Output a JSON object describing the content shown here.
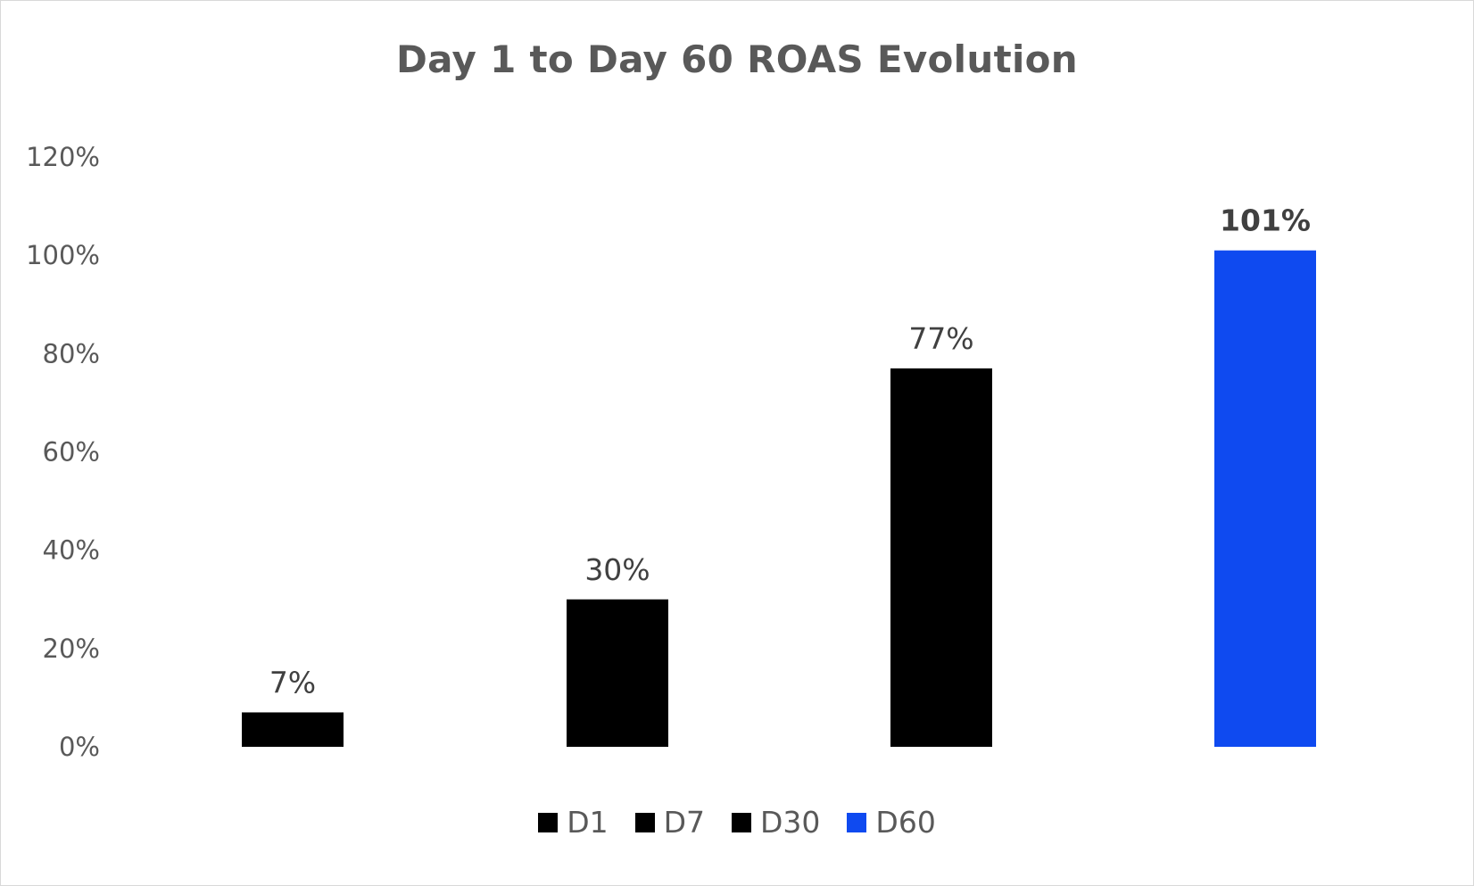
{
  "chart_data": {
    "type": "bar",
    "title": "Day 1 to Day 60 ROAS Evolution",
    "categories": [
      "D1",
      "D7",
      "D30",
      "D60"
    ],
    "values": [
      7,
      30,
      77,
      101
    ],
    "data_labels": [
      "7%",
      "30%",
      "77%",
      "101%"
    ],
    "colors": [
      "#000000",
      "#000000",
      "#000000",
      "#0f4af0"
    ],
    "ylim": [
      0,
      120
    ],
    "yticks": [
      0,
      20,
      40,
      60,
      80,
      100,
      120
    ],
    "ytick_labels": [
      "0%",
      "20%",
      "40%",
      "60%",
      "80%",
      "100%",
      "120%"
    ],
    "grid": false,
    "legend": {
      "position": "bottom",
      "entries": [
        "D1",
        "D7",
        "D30",
        "D60"
      ]
    }
  }
}
